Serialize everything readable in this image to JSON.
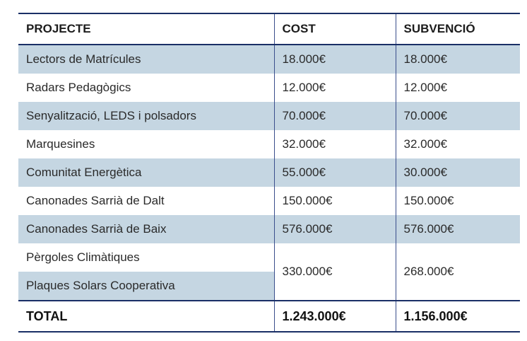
{
  "table": {
    "headers": [
      "PROJECTE",
      "COST",
      "SUBVENCIÓ"
    ],
    "rows": [
      {
        "project": "Lectors de Matrícules",
        "cost": "18.000€",
        "grant": "18.000€"
      },
      {
        "project": "Radars Pedagògics",
        "cost": "12.000€",
        "grant": "12.000€"
      },
      {
        "project": "Senyalització, LEDS i polsadors",
        "cost": "70.000€",
        "grant": "70.000€"
      },
      {
        "project": "Marquesines",
        "cost": "32.000€",
        "grant": "32.000€"
      },
      {
        "project": "Comunitat Energètica",
        "cost": "55.000€",
        "grant": "30.000€"
      },
      {
        "project": "Canonades Sarrià de Dalt",
        "cost": "150.000€",
        "grant": "150.000€"
      },
      {
        "project": "Canonades Sarrià de Baix",
        "cost": "576.000€",
        "grant": "576.000€"
      }
    ],
    "merged": {
      "projects": [
        "Pèrgoles Climàtiques",
        "Plaques Solars Cooperativa"
      ],
      "cost": "330.000€",
      "grant": "268.000€"
    },
    "total": {
      "label": "TOTAL",
      "cost": "1.243.000€",
      "grant": "1.156.000€"
    },
    "colors": {
      "stripe": "#c5d6e2",
      "rule": "#1a2f66",
      "divider": "#3a4e8c"
    }
  }
}
